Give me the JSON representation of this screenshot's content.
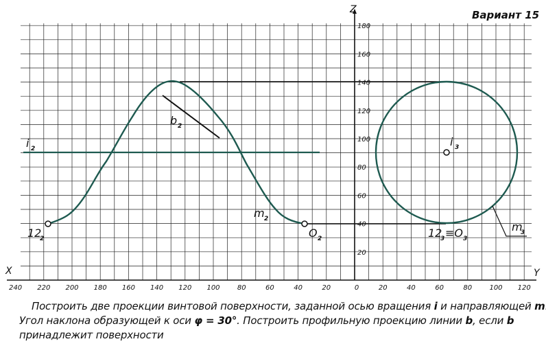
{
  "variant_title": "Вариант 15",
  "axis_names": {
    "x": "X",
    "y": "Y",
    "z": "Z"
  },
  "x_axis_ticks": [
    "240",
    "220",
    "200",
    "180",
    "160",
    "140",
    "120",
    "100",
    "80",
    "60",
    "40",
    "20"
  ],
  "y_axis_ticks": [
    "0",
    "20",
    "40",
    "60",
    "80",
    "100",
    "120"
  ],
  "z_axis_ticks": [
    "180",
    "160",
    "140",
    "120",
    "100",
    "80",
    "60",
    "40",
    "20"
  ],
  "labels": {
    "i_front": "i",
    "i_front_sub": "2",
    "b_front": "b",
    "b_front_sub": "2",
    "m_front": "m",
    "m_front_sub": "2",
    "p12_front": "12",
    "p12_front_sub": "2",
    "o_front": "O",
    "o_front_sub": "2",
    "i_profile": "i",
    "i_profile_sub": "3",
    "m_profile": "m",
    "m_profile_sub": "3",
    "p12_profile": "12",
    "p12_profile_sub": "3",
    "p12_profile_eq": "≡O",
    "o_profile_sub": "3"
  },
  "colors": {
    "curve": "#1e5a50",
    "line": "#111111",
    "grid": "#222222"
  },
  "task": {
    "line1_a": "Построить две проекции винтовой поверхности,  заданной осью вращения ",
    "line1_i": "i",
    "line1_b": " и направляющей ",
    "line1_m": "m",
    "line1_c": ".",
    "line2_a": "Угол наклона образующей к оси  ",
    "line2_phi": "φ = 30°",
    "line2_b": ". Построить профильную проекцию линии ",
    "line2_bsym": "b",
    "line2_c": ", если ",
    "line2_bsym2": "b",
    "line3": "принадлежит поверхности"
  }
}
